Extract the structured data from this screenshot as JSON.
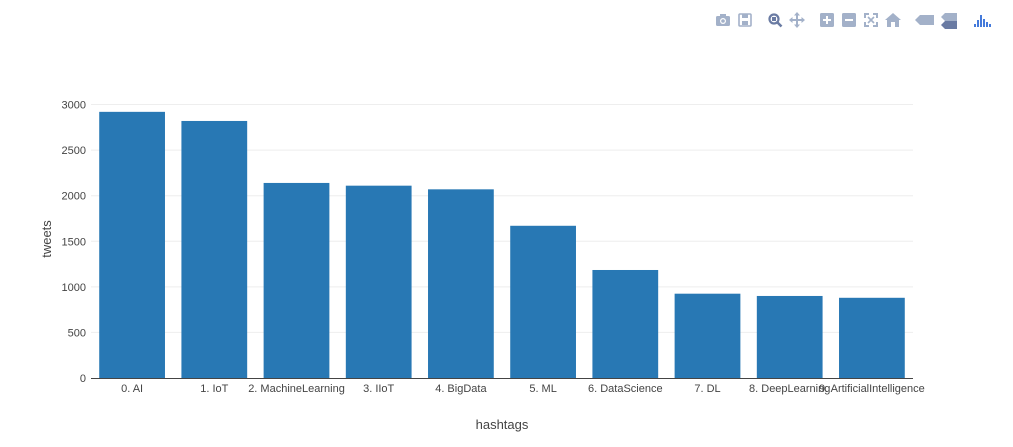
{
  "modebar": {
    "buttons": [
      {
        "name": "camera-icon",
        "group": 0
      },
      {
        "name": "save-icon",
        "group": 0
      },
      {
        "name": "zoom-icon",
        "group": 1
      },
      {
        "name": "pan-icon",
        "group": 1
      },
      {
        "name": "zoom-in-icon",
        "group": 2
      },
      {
        "name": "zoom-out-icon",
        "group": 2
      },
      {
        "name": "autoscale-icon",
        "group": 2
      },
      {
        "name": "reset-axes-icon",
        "group": 2
      },
      {
        "name": "hover-closest-icon",
        "group": 3
      },
      {
        "name": "hover-compare-icon",
        "group": 3
      },
      {
        "name": "plotly-logo-icon",
        "group": 4
      }
    ],
    "colors": {
      "icon": "#a3b1c9",
      "active": "#6a7ba3",
      "logo": "#447adb"
    }
  },
  "chart_data": {
    "type": "bar",
    "categories": [
      "0. AI",
      "1. IoT",
      "2. MachineLearning",
      "3. IIoT",
      "4. BigData",
      "5. ML",
      "6. DataScience",
      "7. DL",
      "8. DeepLearning",
      "9. ArtificialIntelligence"
    ],
    "values": [
      2920,
      2820,
      2140,
      2110,
      2070,
      1670,
      1185,
      925,
      900,
      880
    ],
    "xlabel": "hashtags",
    "ylabel": "tweets",
    "ylim": [
      0,
      3050
    ],
    "yticks": [
      0,
      500,
      1000,
      1500,
      2000,
      2500,
      3000
    ],
    "grid": true,
    "colors": {
      "bar": "#2878b4",
      "grid": "#eeeeee",
      "axis": "#444444"
    }
  }
}
